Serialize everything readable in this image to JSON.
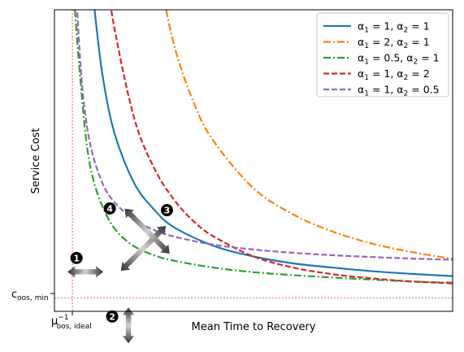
{
  "chart_data": {
    "type": "line",
    "xlabel": "Mean Time to Recovery",
    "ylabel": "Service Cost",
    "x_tick_label": "μ⁻¹_{oos, ideal}",
    "x_tick_label_main": "μ",
    "x_tick_label_sup": "−1",
    "x_tick_label_sub": "oos, ideal",
    "y_tick_label": "c_{oos, min}",
    "y_tick_label_main": "c",
    "y_tick_label_sub": "oos, min",
    "x_ticks_numeric": false,
    "y_ticks_numeric": false,
    "xlim": [
      0,
      10
    ],
    "ylim": [
      0,
      10
    ],
    "x_reference": 0.45,
    "y_reference": 0.45,
    "grid": false,
    "legend": "top-right",
    "series": [
      {
        "name": "α₁ = 1, α₂ = 1",
        "name_parts": [
          "1",
          "1"
        ],
        "color": "#1f77b4",
        "dash": "solid",
        "x": [
          0.92,
          1.0,
          1.2,
          1.5,
          2.0,
          2.5,
          3.0,
          4.0,
          5.0,
          6.0,
          7.0,
          8.0,
          9.0,
          10.0
        ],
        "y": [
          11.17,
          10.1,
          7.9,
          5.94,
          4.26,
          3.38,
          2.79,
          2.17,
          1.82,
          1.59,
          1.45,
          1.33,
          1.24,
          1.17
        ]
      },
      {
        "name": "α₁ = 2, α₂ = 1",
        "name_parts": [
          "2",
          "1"
        ],
        "color": "#ff7f0e",
        "dash": "dashdot",
        "x": [
          2.6,
          3.0,
          3.5,
          4.0,
          5.0,
          6.0,
          7.0,
          8.0,
          9.0,
          10.0
        ],
        "y": [
          11.35,
          8.85,
          6.91,
          5.64,
          4.08,
          3.21,
          2.64,
          2.24,
          1.96,
          1.74
        ]
      },
      {
        "name": "α₁ = 0.5, α₂ = 1",
        "name_parts": [
          "0.5",
          "1"
        ],
        "color": "#2ca02c",
        "dash": "dashdot",
        "x": [
          0.49,
          0.6,
          0.8,
          1.0,
          1.3,
          1.6,
          2.0,
          2.5,
          3.0,
          4.0,
          5.0,
          6.0,
          7.0,
          8.0,
          9.0,
          10.0
        ],
        "y": [
          10.45,
          8.49,
          5.65,
          4.25,
          3.21,
          2.6,
          2.16,
          1.86,
          1.68,
          1.45,
          1.3,
          1.2,
          1.12,
          1.05,
          0.99,
          0.95
        ]
      },
      {
        "name": "α₁ = 1, α₂ = 2",
        "name_parts": [
          "1",
          "2"
        ],
        "color": "#d62728",
        "dash": "dashed",
        "x": [
          1.3,
          1.5,
          2.0,
          2.5,
          3.0,
          3.5,
          4.0,
          5.0,
          6.0,
          7.0,
          8.0,
          9.0,
          10.0
        ],
        "y": [
          11.31,
          9.43,
          6.42,
          4.76,
          3.71,
          2.98,
          2.48,
          1.82,
          1.45,
          1.23,
          1.09,
          0.99,
          0.93
        ]
      },
      {
        "name": "α₁ = 1, α₂ = 0.5",
        "name_parts": [
          "1",
          "0.5"
        ],
        "color": "#9467bd",
        "dash": "dashed",
        "x": [
          0.55,
          0.7,
          0.9,
          1.2,
          1.5,
          2.0,
          2.5,
          3.0,
          4.0,
          5.0,
          6.0,
          7.0,
          8.0,
          9.0,
          10.0
        ],
        "y": [
          10.45,
          7.4,
          5.53,
          4.27,
          3.63,
          3.04,
          2.7,
          2.48,
          2.21,
          2.05,
          1.94,
          1.86,
          1.8,
          1.75,
          1.71
        ]
      }
    ],
    "annotations": [
      {
        "label": "1",
        "arrow": "horizontal",
        "x": 0.35,
        "y": 1.77
      },
      {
        "label": "2",
        "arrow": "vertical",
        "x": 1.45,
        "y": -0.25
      },
      {
        "label": "3",
        "arrow": "diagonal-up-right",
        "x": 2.54,
        "y": 2.95
      },
      {
        "label": "4",
        "arrow": "diagonal-up-left",
        "x": 1.88,
        "y": 3.36
      }
    ]
  }
}
